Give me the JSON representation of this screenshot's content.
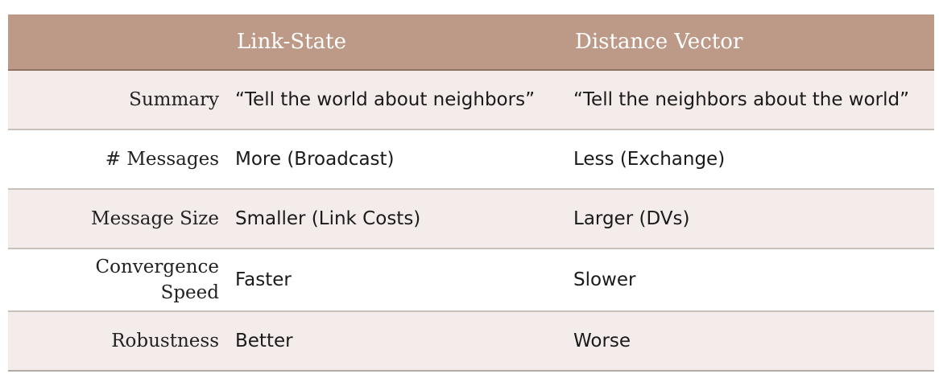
{
  "table": {
    "headers": [
      "",
      "Link-State",
      "Distance Vector"
    ],
    "rows": [
      {
        "label": "Summary",
        "link_state": "“Tell the world about neighbors”",
        "distance_vector": "“Tell the neighbors about the world”"
      },
      {
        "label": "# Messages",
        "link_state": "More (Broadcast)",
        "distance_vector": "Less (Exchange)"
      },
      {
        "label": "Message Size",
        "link_state": "Smaller (Link Costs)",
        "distance_vector": "Larger (DVs)"
      },
      {
        "label": "Convergence\nSpeed",
        "link_state": "Faster",
        "distance_vector": "Slower"
      },
      {
        "label": "Robustness",
        "link_state": "Better",
        "distance_vector": "Worse"
      }
    ]
  },
  "colors": {
    "header_bg": "#bd9a87",
    "header_text": "#ffffff",
    "row_alt_bg": "#f4ecea",
    "border": "#c9c0ba"
  }
}
